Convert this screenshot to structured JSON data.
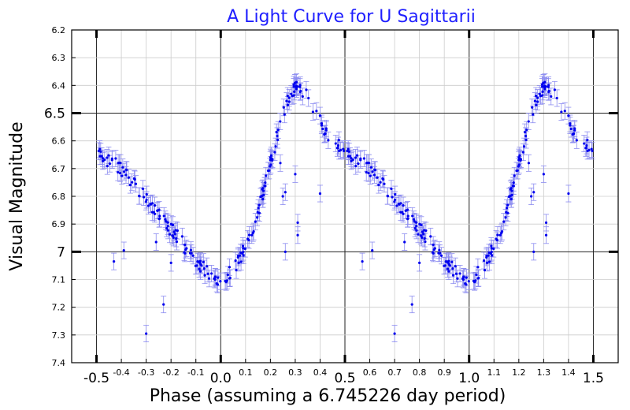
{
  "chart_data": {
    "type": "scatter",
    "title": "A Light Curve for U Sagittarii",
    "xlabel": "Phase (assuming a 6.745226 day period)",
    "ylabel": "Visual Magnitude",
    "xlim": [
      -0.6,
      1.6
    ],
    "ylim": [
      6.2,
      7.4
    ],
    "y_inverted": true,
    "grid": true,
    "x_minor_ticks": [
      "-0.4",
      "-0.3",
      "-0.2",
      "-0.1",
      "0.1",
      "0.2",
      "0.3",
      "0.4",
      "0.6",
      "0.7",
      "0.8",
      "0.9",
      "1.1",
      "1.2",
      "1.3",
      "1.4"
    ],
    "x_major_ticks": [
      "-0.5",
      "0.0",
      "0.5",
      "1.0",
      "1.5"
    ],
    "y_minor_ticks": [
      "6.2",
      "6.3",
      "6.4",
      "6.6",
      "6.7",
      "6.8",
      "6.9",
      "7.1",
      "7.2",
      "7.3",
      "7.4"
    ],
    "y_major_ticks": [
      "6.5",
      "7"
    ],
    "colors": {
      "points": "#0000ee",
      "errorbars": "#8c8cf0",
      "title": "#1f1fff",
      "grid": "#cccccc"
    },
    "light_curve_knots": {
      "phase": [
        0.0,
        0.05,
        0.1,
        0.15,
        0.2,
        0.25,
        0.3,
        0.35,
        0.4,
        0.45,
        0.5,
        0.6,
        0.7,
        0.8,
        0.9,
        0.95,
        1.0
      ],
      "magnitude": [
        7.1,
        7.07,
        6.98,
        6.86,
        6.68,
        6.5,
        6.4,
        6.44,
        6.53,
        6.6,
        6.64,
        6.7,
        6.81,
        6.92,
        7.03,
        7.08,
        7.1
      ]
    },
    "sample_count": 220,
    "errorbar": 0.03,
    "outliers": [
      {
        "phase": -0.43,
        "mag": 7.035
      },
      {
        "phase": -0.39,
        "mag": 6.995
      },
      {
        "phase": -0.3,
        "mag": 7.295
      },
      {
        "phase": -0.26,
        "mag": 6.965
      },
      {
        "phase": -0.23,
        "mag": 7.19
      },
      {
        "phase": -0.2,
        "mag": 7.04
      },
      {
        "phase": 0.24,
        "mag": 6.68
      },
      {
        "phase": 0.25,
        "mag": 6.8
      },
      {
        "phase": 0.26,
        "mag": 6.785
      },
      {
        "phase": 0.26,
        "mag": 7.0
      },
      {
        "phase": 0.3,
        "mag": 6.72
      },
      {
        "phase": 0.31,
        "mag": 6.895
      },
      {
        "phase": 0.31,
        "mag": 6.94
      },
      {
        "phase": 0.4,
        "mag": 6.79
      }
    ]
  }
}
